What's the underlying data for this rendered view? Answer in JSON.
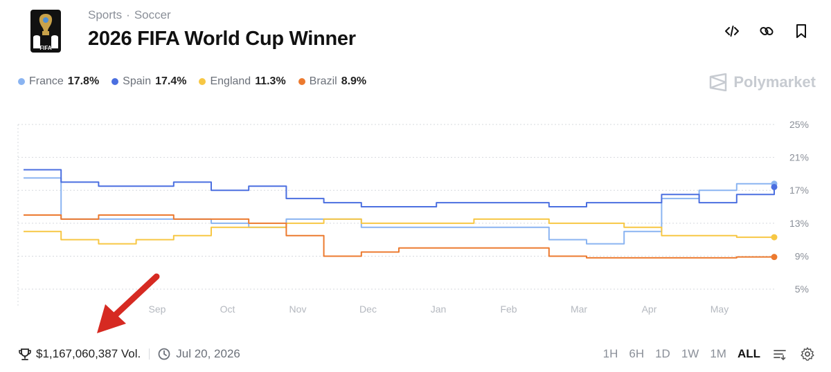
{
  "breadcrumb": {
    "category": "Sports",
    "separator": "·",
    "subcategory": "Soccer"
  },
  "title": "2026 FIFA World Cup Winner",
  "logo": {
    "text": "FIFA",
    "icon": "trophy-icon"
  },
  "header_actions": [
    {
      "name": "embed-button",
      "icon": "code-icon"
    },
    {
      "name": "copy-link-button",
      "icon": "link-icon"
    },
    {
      "name": "bookmark-button",
      "icon": "bookmark-icon"
    }
  ],
  "brand": {
    "name": "Polymarket",
    "icon": "polymarket-logo-icon"
  },
  "legend": [
    {
      "name": "France",
      "pct": "17.8%",
      "color": "#8ab4f1"
    },
    {
      "name": "Spain",
      "pct": "17.4%",
      "color": "#4b6fe0"
    },
    {
      "name": "England",
      "pct": "11.3%",
      "color": "#f7c744"
    },
    {
      "name": "Brazil",
      "pct": "8.9%",
      "color": "#ec7a2f"
    }
  ],
  "footer": {
    "volume": "$1,167,060,387 Vol.",
    "volume_icon": "trophy-icon",
    "end_date": "Jul 20, 2026",
    "end_date_icon": "clock-icon"
  },
  "time_ranges": [
    {
      "label": "1H",
      "active": false
    },
    {
      "label": "6H",
      "active": false
    },
    {
      "label": "1D",
      "active": false
    },
    {
      "label": "1W",
      "active": false
    },
    {
      "label": "1M",
      "active": false
    },
    {
      "label": "ALL",
      "active": true
    }
  ],
  "tools": [
    {
      "name": "filter-button",
      "icon": "filter-lines-icon"
    },
    {
      "name": "settings-button",
      "icon": "gear-icon"
    }
  ],
  "annotation": {
    "icon": "red-arrow-icon",
    "color": "#d62a22"
  },
  "chart_data": {
    "type": "line",
    "title": "",
    "xlabel": "",
    "ylabel": "",
    "x_ticks": [
      "Sep",
      "Oct",
      "Nov",
      "Dec",
      "Jan",
      "Feb",
      "Mar",
      "Apr",
      "May"
    ],
    "y_ticks": [
      "25%",
      "21%",
      "17%",
      "13%",
      "9%",
      "5%"
    ],
    "ylim": [
      4,
      25
    ],
    "grid": true,
    "y_axis_position": "right",
    "x": [
      "Aug 10",
      "Aug 20",
      "Sep 1",
      "Sep 15",
      "Oct 1",
      "Oct 15",
      "Nov 1",
      "Nov 15",
      "Dec 1",
      "Dec 15",
      "Jan 1",
      "Jan 15",
      "Feb 1",
      "Feb 15",
      "Mar 1",
      "Mar 15",
      "Apr 1",
      "Apr 15",
      "May 1",
      "May 15",
      "May 25"
    ],
    "series": [
      {
        "name": "France",
        "color": "#8ab4f1",
        "values": [
          18.5,
          13.5,
          13.5,
          13.5,
          13.5,
          13.0,
          12.5,
          13.5,
          13.5,
          12.5,
          12.5,
          12.5,
          12.5,
          12.5,
          11.0,
          10.5,
          12.0,
          16.0,
          17.0,
          17.8,
          17.8
        ]
      },
      {
        "name": "Spain",
        "color": "#4b6fe0",
        "values": [
          19.5,
          18.0,
          17.5,
          17.5,
          18.0,
          17.0,
          17.5,
          16.0,
          15.5,
          15.0,
          15.0,
          15.5,
          15.5,
          15.5,
          15.0,
          15.5,
          15.5,
          16.5,
          15.5,
          16.5,
          17.4
        ]
      },
      {
        "name": "England",
        "color": "#f7c744",
        "values": [
          12.0,
          11.0,
          10.5,
          11.0,
          11.5,
          12.5,
          12.5,
          13.0,
          13.5,
          13.0,
          13.0,
          13.0,
          13.5,
          13.5,
          13.0,
          13.0,
          12.5,
          11.5,
          11.5,
          11.3,
          11.3
        ]
      },
      {
        "name": "Brazil",
        "color": "#ec7a2f",
        "values": [
          14.0,
          13.5,
          14.0,
          14.0,
          13.5,
          13.5,
          13.0,
          11.5,
          9.0,
          9.5,
          10.0,
          10.0,
          10.0,
          10.0,
          9.0,
          8.8,
          8.8,
          8.8,
          8.8,
          8.9,
          8.9
        ]
      }
    ]
  }
}
